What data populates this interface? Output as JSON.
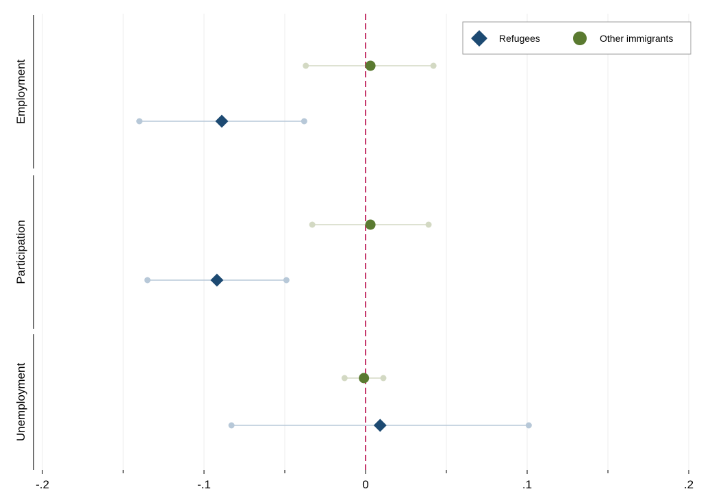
{
  "chart_data": {
    "type": "coefficient-plot",
    "title": "",
    "xlabel": "",
    "ylabel": "",
    "xlim": [
      -0.2,
      0.2
    ],
    "x_ticks": [
      -0.2,
      -0.1,
      0,
      0.1,
      0.2
    ],
    "x_tick_labels": [
      "-.2",
      "-.1",
      "0",
      ".1",
      ".2"
    ],
    "minor_x_ticks": [
      -0.15,
      -0.05,
      0.05,
      0.15
    ],
    "reference_line": {
      "x": 0,
      "style": "dashed",
      "color": "#c0245c"
    },
    "grid": true,
    "legend_position": "top-right",
    "panels": [
      "Employment",
      "Participation",
      "Unemployment"
    ],
    "series": [
      {
        "name": "Refugees",
        "marker": "diamond",
        "color": "#1d4a72",
        "ci_color": "#b7c8d8",
        "points": [
          {
            "panel": "Employment",
            "estimate": -0.089,
            "ci_low": -0.14,
            "ci_high": -0.038
          },
          {
            "panel": "Participation",
            "estimate": -0.092,
            "ci_low": -0.135,
            "ci_high": -0.049
          },
          {
            "panel": "Unemployment",
            "estimate": 0.009,
            "ci_low": -0.083,
            "ci_high": 0.101
          }
        ]
      },
      {
        "name": "Other immigrants",
        "marker": "circle",
        "color": "#5a7a30",
        "ci_color": "#d3d9c3",
        "points": [
          {
            "panel": "Employment",
            "estimate": 0.003,
            "ci_low": -0.037,
            "ci_high": 0.042
          },
          {
            "panel": "Participation",
            "estimate": 0.003,
            "ci_low": -0.033,
            "ci_high": 0.039
          },
          {
            "panel": "Unemployment",
            "estimate": -0.001,
            "ci_low": -0.013,
            "ci_high": 0.011
          }
        ]
      }
    ]
  }
}
